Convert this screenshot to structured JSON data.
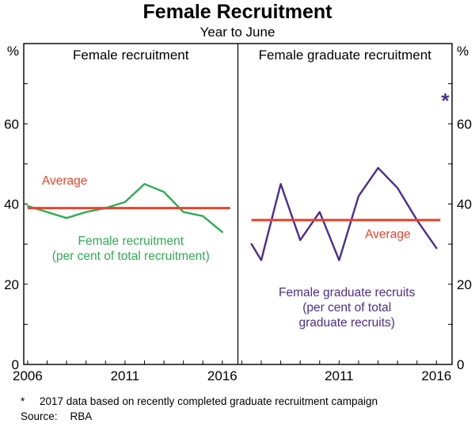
{
  "title": "Female Recruitment",
  "subtitle": "Year to June",
  "footnote": {
    "marker": "*",
    "text": "2017 data based on recently completed graduate recruitment campaign"
  },
  "source": {
    "label": "Source:",
    "value": "RBA"
  },
  "chart_data": {
    "type": "line",
    "unit": "%",
    "ylim": [
      0,
      80
    ],
    "yticks_labeled": [
      0,
      20,
      40,
      60
    ],
    "ytick_minor_step": 10,
    "xlim": [
      2005.8,
      2016.8
    ],
    "xtick_minor_step": 1,
    "grid": false,
    "panels": [
      {
        "title": "Female recruitment",
        "xticks_labeled": [
          2006,
          2011,
          2016
        ],
        "series": [
          {
            "name": "Female recruitment (per cent of total recruitment)",
            "color": "#2eac52",
            "x": [
              2006,
              2007,
              2008,
              2009,
              2010,
              2011,
              2012,
              2013,
              2014,
              2015,
              2016
            ],
            "values": [
              39.5,
              38,
              36.5,
              38,
              39,
              40.5,
              45,
              43,
              38,
              37,
              33
            ]
          },
          {
            "name": "Average",
            "type": "average",
            "color": "#e8432c",
            "value": 39,
            "x_start": 2006,
            "x_end": 2016.4
          }
        ],
        "annotations": [
          {
            "name": "average-label-left",
            "lines": [
              "Average"
            ],
            "color": "#e8432c",
            "x": 2007.9,
            "y": 44.8
          },
          {
            "name": "series-label-left",
            "lines": [
              "Female recruitment",
              "(per cent of total recruitment)"
            ],
            "color": "#2eac52",
            "x": 2011.3,
            "y": 29.8
          }
        ]
      },
      {
        "title": "Female graduate recruitment",
        "xticks_labeled": [
          2011,
          2016
        ],
        "series": [
          {
            "name": "Female graduate recruits (per cent of total graduate recruits)",
            "color": "#4d2d91",
            "x": [
              2006.5,
              2007,
              2008,
              2009,
              2010,
              2011,
              2012,
              2013,
              2014,
              2015,
              2016
            ],
            "values": [
              30,
              26,
              45,
              31,
              38,
              26,
              42,
              49,
              44,
              36,
              29
            ]
          },
          {
            "name": "Average",
            "type": "average",
            "color": "#e8432c",
            "value": 36,
            "x_start": 2006.5,
            "x_end": 2016.2
          }
        ],
        "annotations": [
          {
            "name": "average-label-right",
            "lines": [
              "Average"
            ],
            "color": "#e8432c",
            "x": 2013.5,
            "y": 31.5
          },
          {
            "name": "series-label-right",
            "lines": [
              "Female graduate recruits",
              "(per cent of total",
              "graduate recruits)"
            ],
            "color": "#4d2d91",
            "x": 2011.4,
            "y": 17
          },
          {
            "name": "star-2017-marker",
            "class": "star",
            "lines": [
              "*"
            ],
            "color": "#4d2d91",
            "x": 2016.45,
            "y": 64
          }
        ]
      }
    ]
  }
}
